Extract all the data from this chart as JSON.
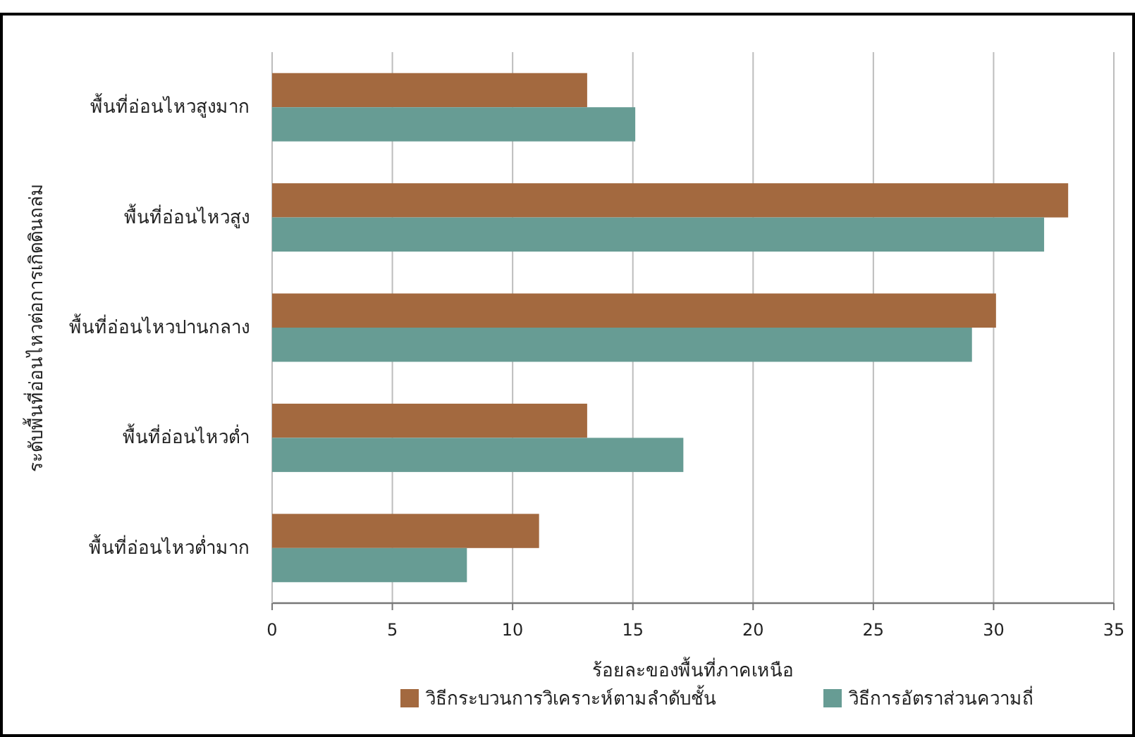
{
  "chart_data": {
    "type": "bar",
    "orientation": "horizontal",
    "categories": [
      "พื้นที่อ่อนไหวสูงมาก",
      "พื้นที่อ่อนไหวสูง",
      "พื้นที่อ่อนไหวปานกลาง",
      "พื้นที่อ่อนไหวต่ำ",
      "พื้นที่อ่อนไหวต่ำมาก"
    ],
    "series": [
      {
        "name": "วิธีกระบวนการวิเคราะห์ตามลำดับชั้น",
        "color": "#a3693f",
        "values": [
          13.1,
          33.1,
          30.1,
          13.1,
          11.1
        ]
      },
      {
        "name": "วิธีการอัตราส่วนความถี่",
        "color": "#679c94",
        "values": [
          15.1,
          32.1,
          29.1,
          17.1,
          8.1
        ]
      }
    ],
    "xlabel": "ร้อยละของพื้นที่ภาคเหนือ",
    "ylabel": "ระดับพื้นที่อ่อนไหวต่อการเกิดดินถล่ม",
    "xlim": [
      0,
      35
    ],
    "xticks": [
      0,
      5,
      10,
      15,
      20,
      25,
      30,
      35
    ],
    "grid": "x",
    "legend": "bottom"
  }
}
